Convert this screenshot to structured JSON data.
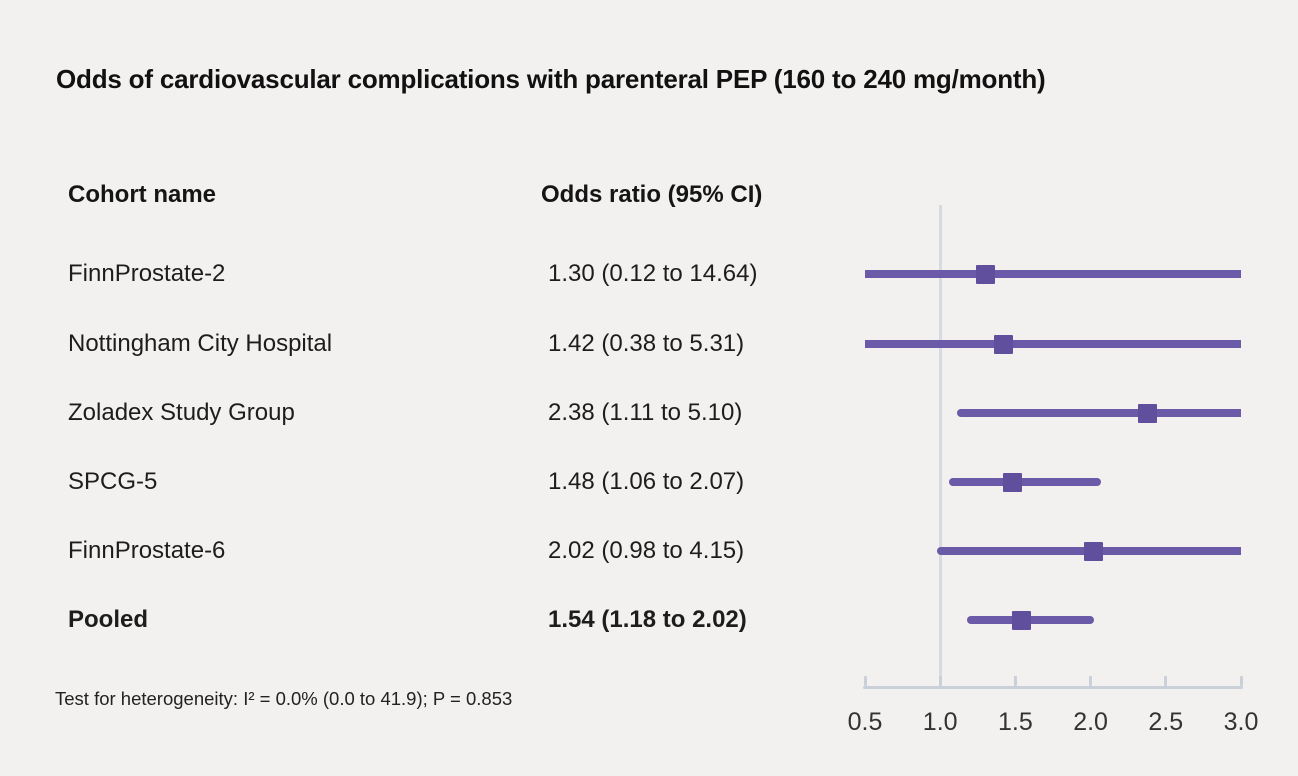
{
  "title": "Odds of cardiovascular complications with parenteral PEP (160 to 240 mg/month)",
  "columns": {
    "cohort": "Cohort name",
    "odds_ratio": "Odds ratio (95% CI)"
  },
  "rows": [
    {
      "name": "FinnProstate-2",
      "or_text": "1.30 (0.12 to 14.64)",
      "estimate": 1.3,
      "ci_lower": 0.12,
      "ci_upper": 14.64,
      "pooled": false
    },
    {
      "name": "Nottingham City Hospital",
      "or_text": "1.42 (0.38 to 5.31)",
      "estimate": 1.42,
      "ci_lower": 0.38,
      "ci_upper": 5.31,
      "pooled": false
    },
    {
      "name": "Zoladex Study Group",
      "or_text": "2.38 (1.11 to 5.10)",
      "estimate": 2.38,
      "ci_lower": 1.11,
      "ci_upper": 5.1,
      "pooled": false
    },
    {
      "name": "SPCG-5",
      "or_text": "1.48 (1.06 to 2.07)",
      "estimate": 1.48,
      "ci_lower": 1.06,
      "ci_upper": 2.07,
      "pooled": false
    },
    {
      "name": "FinnProstate-6",
      "or_text": "2.02 (0.98 to 4.15)",
      "estimate": 2.02,
      "ci_lower": 0.98,
      "ci_upper": 4.15,
      "pooled": false
    },
    {
      "name": "Pooled",
      "or_text": "1.54 (1.18 to 2.02)",
      "estimate": 1.54,
      "ci_lower": 1.18,
      "ci_upper": 2.02,
      "pooled": true
    }
  ],
  "footnote": "Test for heterogeneity: I² = 0.0% (0.0 to 41.9); P = 0.853",
  "axis": {
    "min": 0.5,
    "max": 3.0,
    "reference_value": 1.0,
    "ticks": [
      {
        "value": 0.5,
        "label": "0.5"
      },
      {
        "value": 1.0,
        "label": "1.0"
      },
      {
        "value": 1.5,
        "label": "1.5"
      },
      {
        "value": 2.0,
        "label": "2.0"
      },
      {
        "value": 2.5,
        "label": "2.5"
      },
      {
        "value": 3.0,
        "label": "3.0"
      }
    ]
  },
  "colors": {
    "background": "#f2f1f0",
    "ci_line": "#6b5aa7",
    "marker": "#5f4f9d",
    "reference_line": "#d6dae1",
    "axis": "#cad0d8",
    "tick_label": "#333333",
    "text": "#1d1d1d"
  },
  "chart_data": {
    "type": "scatter",
    "subtype": "forest-plot",
    "title": "Odds of cardiovascular complications with parenteral PEP (160 to 240 mg/month)",
    "categories": [
      "FinnProstate-2",
      "Nottingham City Hospital",
      "Zoladex Study Group",
      "SPCG-5",
      "FinnProstate-6",
      "Pooled"
    ],
    "series": [
      {
        "name": "Odds ratio",
        "values": [
          1.3,
          1.42,
          2.38,
          1.48,
          2.02,
          1.54
        ]
      },
      {
        "name": "95% CI lower",
        "values": [
          0.12,
          0.38,
          1.11,
          1.06,
          0.98,
          1.18
        ]
      },
      {
        "name": "95% CI upper",
        "values": [
          14.64,
          5.31,
          5.1,
          2.07,
          4.15,
          2.02
        ]
      }
    ],
    "xlabel": "",
    "ylabel": "",
    "xlim": [
      0.5,
      3.0
    ],
    "x_ticks": [
      0.5,
      1.0,
      1.5,
      2.0,
      2.5,
      3.0
    ],
    "reference_line_x": 1.0,
    "ci_clipped_to_xlim": true,
    "grid": false,
    "legend": "none",
    "annotation": "Test for heterogeneity: I² = 0.0% (0.0 to 41.9); P = 0.853"
  }
}
